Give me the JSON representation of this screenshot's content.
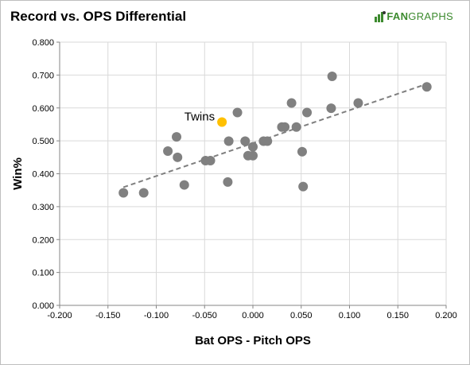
{
  "header": {
    "title": "Record vs. OPS Differential",
    "logo_text_a": "FAN",
    "logo_text_b": "GRAPHS"
  },
  "chart_data": {
    "type": "scatter",
    "title": "Record vs. OPS Differential",
    "xlabel": "Bat OPS - Pitch OPS",
    "ylabel": "Win%",
    "xlim": [
      -0.2,
      0.2
    ],
    "ylim": [
      0,
      0.8
    ],
    "x_ticks": [
      "-0.200",
      "-0.150",
      "-0.100",
      "-0.050",
      "0.000",
      "0.050",
      "0.100",
      "0.150",
      "0.200"
    ],
    "y_ticks": [
      "0.000",
      "0.100",
      "0.200",
      "0.300",
      "0.400",
      "0.500",
      "0.600",
      "0.700",
      "0.800"
    ],
    "grid": "both",
    "point_color": "#808080",
    "highlight_color": "#ffc000",
    "trend_color": "#7f7f7f",
    "points": [
      {
        "x": -0.134,
        "y": 0.342
      },
      {
        "x": -0.113,
        "y": 0.342
      },
      {
        "x": -0.088,
        "y": 0.469
      },
      {
        "x": -0.079,
        "y": 0.512
      },
      {
        "x": -0.078,
        "y": 0.45
      },
      {
        "x": -0.071,
        "y": 0.366
      },
      {
        "x": -0.049,
        "y": 0.44
      },
      {
        "x": -0.044,
        "y": 0.44
      },
      {
        "x": -0.026,
        "y": 0.375
      },
      {
        "x": -0.025,
        "y": 0.499
      },
      {
        "x": -0.016,
        "y": 0.586
      },
      {
        "x": -0.008,
        "y": 0.499
      },
      {
        "x": -0.005,
        "y": 0.455
      },
      {
        "x": 0.0,
        "y": 0.482
      },
      {
        "x": 0.0,
        "y": 0.455
      },
      {
        "x": 0.011,
        "y": 0.499
      },
      {
        "x": 0.015,
        "y": 0.499
      },
      {
        "x": 0.03,
        "y": 0.542
      },
      {
        "x": 0.033,
        "y": 0.542
      },
      {
        "x": 0.04,
        "y": 0.615
      },
      {
        "x": 0.045,
        "y": 0.542
      },
      {
        "x": 0.051,
        "y": 0.467
      },
      {
        "x": 0.052,
        "y": 0.361
      },
      {
        "x": 0.056,
        "y": 0.586
      },
      {
        "x": 0.081,
        "y": 0.599
      },
      {
        "x": 0.082,
        "y": 0.696
      },
      {
        "x": 0.109,
        "y": 0.615
      },
      {
        "x": 0.18,
        "y": 0.664
      }
    ],
    "highlight": {
      "label": "Twins",
      "x": -0.032,
      "y": 0.557
    },
    "trendline": {
      "x": [
        -0.134,
        0.18
      ],
      "y": [
        0.359,
        0.673
      ],
      "style": "dashed"
    }
  }
}
